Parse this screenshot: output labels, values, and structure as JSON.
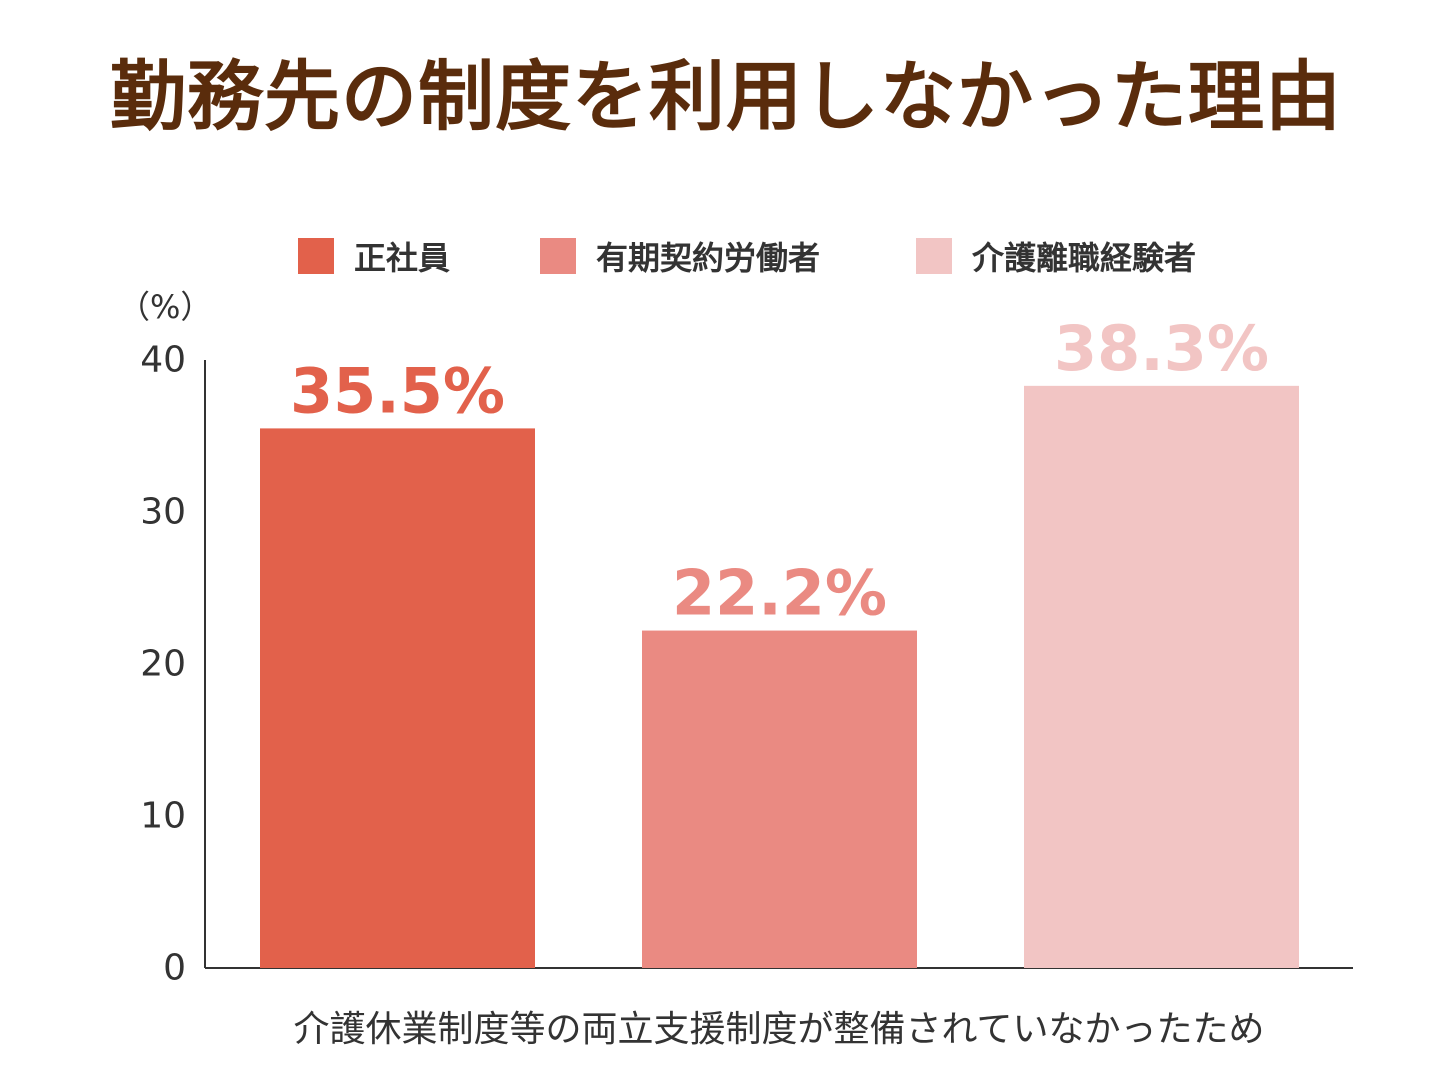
{
  "chart_data": {
    "type": "bar",
    "title": "勤務先の制度を利用しなかった理由",
    "unit_label": "（%）",
    "categories": [
      "介護休業制度等の両立支援制度が整備されていなかったため"
    ],
    "series": [
      {
        "name": "正社員",
        "values": [
          35.5
        ],
        "color": "#e2614b",
        "data_label": "35.5%"
      },
      {
        "name": "有期契約労働者",
        "values": [
          22.2
        ],
        "color": "#ea8a82",
        "data_label": "22.2%"
      },
      {
        "name": "介護離職経験者",
        "values": [
          38.3
        ],
        "color": "#f2c5c4",
        "data_label": "38.3%"
      }
    ],
    "ylim": [
      0,
      40
    ],
    "yticks": [
      0,
      10,
      20,
      30,
      40
    ],
    "legend_position": "top",
    "grid": false
  },
  "colors": {
    "title": "#5a2c0c",
    "text": "#333333",
    "axis": "#333333"
  }
}
